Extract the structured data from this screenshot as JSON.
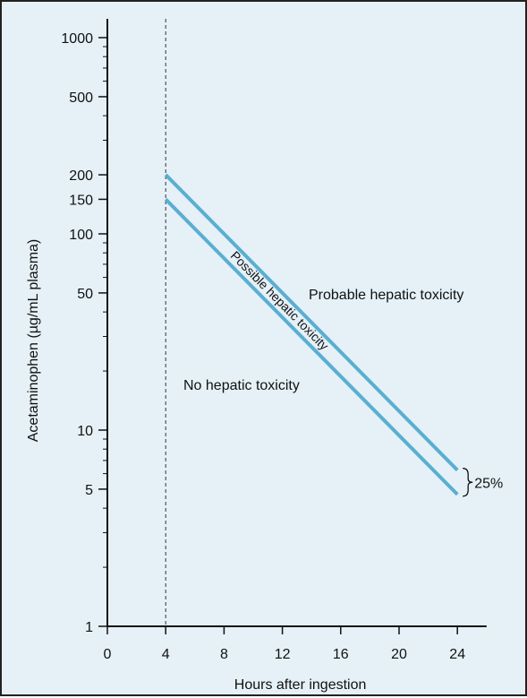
{
  "chart_data": {
    "type": "line",
    "title": "",
    "xlabel": "Hours after ingestion",
    "ylabel": "Acetaminophen (µg/mL plasma)",
    "xlim": [
      0,
      26
    ],
    "ylim": [
      1,
      1000
    ],
    "y_scale": "log",
    "x_ticks": [
      0,
      4,
      8,
      12,
      16,
      20,
      24
    ],
    "x_tick_labels": [
      "0",
      "4",
      "8",
      "12",
      "16",
      "20",
      "24"
    ],
    "y_ticks": [
      1,
      5,
      10,
      50,
      100,
      150,
      200,
      500,
      1000
    ],
    "y_tick_labels": [
      "1",
      "5",
      "10",
      "50",
      "100",
      "150",
      "200",
      "500",
      "1000"
    ],
    "y_minor_ticks": [
      2,
      3,
      4,
      6,
      7,
      8,
      9,
      20,
      30,
      40,
      60,
      70,
      80,
      90,
      300,
      400,
      600,
      700,
      800,
      900
    ],
    "vertical_reference_x": 4,
    "series": [
      {
        "x": [
          4,
          24
        ],
        "values": [
          200,
          6.25
        ],
        "color": "#5aaed2"
      },
      {
        "x": [
          4,
          24
        ],
        "values": [
          150,
          4.7
        ],
        "color": "#5aaed2"
      }
    ],
    "annotations": {
      "upper_region": "Probable hepatic toxicity",
      "lower_region": "No hepatic toxicity",
      "between_lines": "Possible hepatic toxicity",
      "bracket_label": "25%"
    }
  },
  "colors": {
    "background": "#e5f1f7",
    "line": "#5aaed2",
    "axis": "#111111"
  }
}
